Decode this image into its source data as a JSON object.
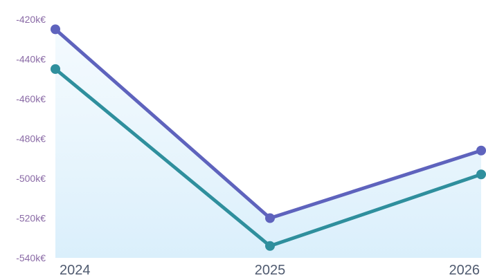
{
  "chart_data": {
    "type": "line",
    "title": "",
    "xlabel": "",
    "ylabel": "",
    "x": [
      "2024",
      "2025",
      "2026"
    ],
    "y_ticks": [
      {
        "value": -420,
        "label": "-420k€"
      },
      {
        "value": -440,
        "label": "-440k€"
      },
      {
        "value": -460,
        "label": "-460k€"
      },
      {
        "value": -480,
        "label": "-480k€"
      },
      {
        "value": -500,
        "label": "-500k€"
      },
      {
        "value": -520,
        "label": "-520k€"
      },
      {
        "value": -540,
        "label": "-540k€"
      }
    ],
    "ylim": [
      -540,
      -420
    ],
    "grid": false,
    "legend": "none",
    "series": [
      {
        "values": [
          -425,
          -520,
          -486
        ],
        "color": "#5e63bd"
      },
      {
        "values": [
          -445,
          -534,
          -498
        ],
        "color": "#2f8f9d"
      }
    ],
    "area_fill_color": "#dff1fb"
  }
}
